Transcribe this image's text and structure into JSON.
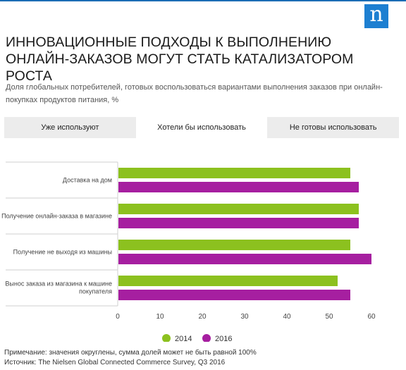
{
  "logo": {
    "letter": "n",
    "icon": "nielsen-logo-icon"
  },
  "header": {
    "title": "ИННОВАЦИОННЫЕ ПОДХОДЫ К ВЫПОЛНЕНИЮ ОНЛАЙН-ЗАКАЗОВ МОГУТ СТАТЬ КАТАЛИЗАТОРОМ РОСТА",
    "subtitle": "Доля глобальных потребителей, готовых воспользоваться вариантами выполнения заказов при онлайн-покупках продуктов питания, %"
  },
  "tabs": [
    {
      "label": "Уже используют",
      "active": false
    },
    {
      "label": "Хотели бы использовать",
      "active": true
    },
    {
      "label": "Не готовы использовать",
      "active": false
    }
  ],
  "chart_data": {
    "type": "bar",
    "orientation": "horizontal",
    "categories": [
      "Доставка на дом",
      "Получение онлайн-заказа в магазине",
      "Получение не выходя из машины",
      "Вынос заказа из магазина к машине покупателя"
    ],
    "series": [
      {
        "name": "2014",
        "color": "#8cc11f",
        "values": [
          55,
          57,
          55,
          52
        ]
      },
      {
        "name": "2016",
        "color": "#a61fa0",
        "values": [
          57,
          57,
          60,
          55
        ]
      }
    ],
    "xlim": [
      0,
      65
    ],
    "xticks": [
      0,
      10,
      20,
      30,
      40,
      50,
      60
    ],
    "legend_position": "bottom-center",
    "grid": false
  },
  "notes": {
    "note": "Примечание: значения округлены, сумма долей может не быть равной 100%",
    "source": "Источник: The Nielsen Global Connected Commerce Survey, Q3 2016"
  }
}
